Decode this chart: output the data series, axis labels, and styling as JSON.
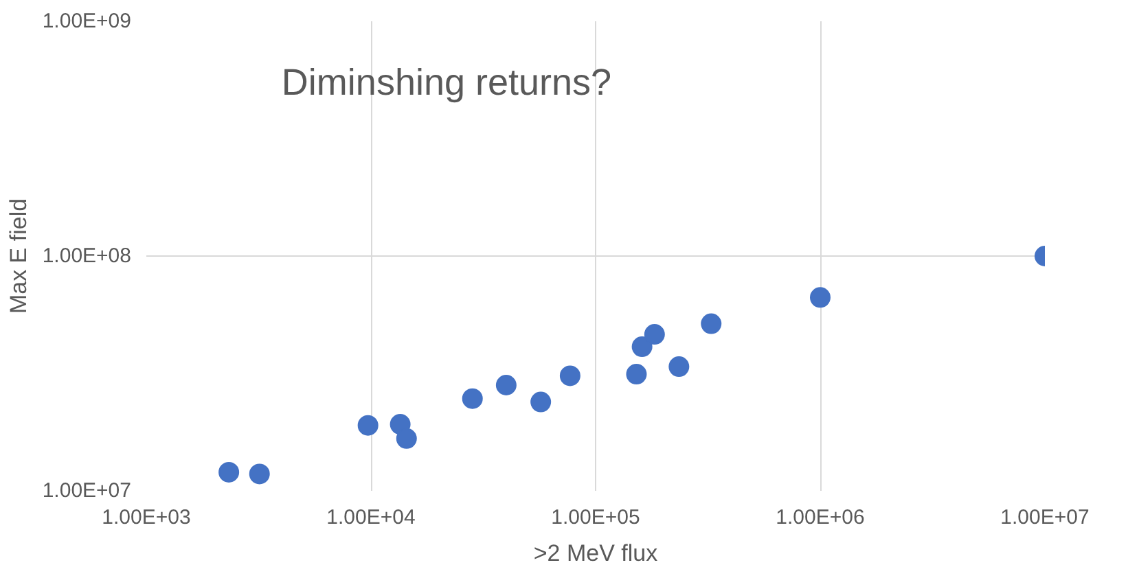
{
  "chart_data": {
    "type": "scatter",
    "title": "Diminshing returns?",
    "xlabel": ">2 MeV flux",
    "ylabel": "Max E field",
    "log": "xy",
    "grid": true,
    "marker": "circle",
    "xlim": [
      1000,
      10000000
    ],
    "ylim": [
      10000000,
      1000000000
    ],
    "xticks": [
      {
        "value": 1000,
        "label": "1.00E+03"
      },
      {
        "value": 10000,
        "label": "1.00E+04"
      },
      {
        "value": 100000,
        "label": "1.00E+05"
      },
      {
        "value": 1000000,
        "label": "1.00E+06"
      },
      {
        "value": 10000000,
        "label": "1.00E+07"
      }
    ],
    "yticks": [
      {
        "value": 10000000,
        "label": "1.00E+07"
      },
      {
        "value": 100000000,
        "label": "1.00E+08"
      },
      {
        "value": 1000000000,
        "label": "1.00E+09"
      }
    ],
    "series": [
      {
        "color": "#4472c4",
        "x": [
          2330,
          3190,
          9700,
          13500,
          14400,
          28300,
          40000,
          57000,
          77000,
          152000,
          161000,
          183000,
          235000,
          327000,
          1000000,
          10000000
        ],
        "values": [
          12000000,
          11800000,
          19000000,
          19200000,
          16700000,
          24700000,
          28200000,
          23900000,
          30900000,
          31400000,
          41100000,
          46400000,
          33800000,
          51500000,
          66600000,
          100000000
        ]
      }
    ]
  }
}
